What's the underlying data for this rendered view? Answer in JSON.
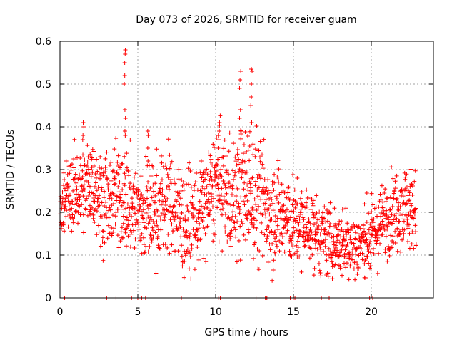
{
  "chart_data": {
    "type": "scatter",
    "title": "Day 073 of 2026, SRMTID for receiver guam",
    "xlabel": "GPS time / hours",
    "ylabel": "SRMTID / TECUs",
    "xlim": [
      0,
      24
    ],
    "ylim": [
      0,
      0.6
    ],
    "xticks": [
      0,
      5,
      10,
      15,
      20
    ],
    "yticks": [
      0,
      0.1,
      0.2,
      0.3,
      0.4,
      0.5,
      0.6
    ],
    "xtick_labels": [
      "0",
      "5",
      "10",
      "15",
      "20"
    ],
    "ytick_labels": [
      "0",
      "0.1",
      "0.2",
      "0.3",
      "0.4",
      "0.5",
      "0.6"
    ],
    "grid": true,
    "marker": "+",
    "marker_color": "#ff0000",
    "series": [
      {
        "name": "SRMTID",
        "x_range": [
          0,
          22.9
        ],
        "baseline": [
          [
            0,
            0.22
          ],
          [
            1,
            0.25
          ],
          [
            2,
            0.27
          ],
          [
            3,
            0.22
          ],
          [
            4,
            0.24
          ],
          [
            5,
            0.2
          ],
          [
            6,
            0.2
          ],
          [
            7,
            0.23
          ],
          [
            8,
            0.17
          ],
          [
            9,
            0.19
          ],
          [
            10,
            0.27
          ],
          [
            11,
            0.23
          ],
          [
            12,
            0.26
          ],
          [
            13,
            0.22
          ],
          [
            14,
            0.2
          ],
          [
            15,
            0.17
          ],
          [
            16,
            0.17
          ],
          [
            17,
            0.13
          ],
          [
            18,
            0.13
          ],
          [
            19,
            0.12
          ],
          [
            20,
            0.14
          ],
          [
            21,
            0.19
          ],
          [
            22,
            0.22
          ],
          [
            22.9,
            0.2
          ]
        ],
        "spread": [
          [
            0,
            0.04
          ],
          [
            4,
            0.06
          ],
          [
            10,
            0.06
          ],
          [
            12.5,
            0.08
          ],
          [
            15,
            0.05
          ],
          [
            17,
            0.04
          ],
          [
            20,
            0.04
          ],
          [
            22.9,
            0.05
          ]
        ],
        "peaks": [
          {
            "x": 4.15,
            "values": [
              0.58,
              0.57,
              0.55,
              0.52,
              0.5,
              0.44,
              0.42,
              0.39,
              0.38
            ]
          },
          {
            "x": 11.6,
            "values": [
              0.53,
              0.51,
              0.49,
              0.44,
              0.42,
              0.39
            ]
          },
          {
            "x": 12.3,
            "values": [
              0.535,
              0.53,
              0.5,
              0.47,
              0.45,
              0.41
            ]
          },
          {
            "x": 10.2,
            "values": [
              0.41,
              0.39,
              0.38,
              0.37,
              0.35
            ]
          },
          {
            "x": 1.5,
            "values": [
              0.41,
              0.4,
              0.38,
              0.37
            ]
          },
          {
            "x": 5.65,
            "values": [
              0.39,
              0.38,
              0.35,
              0.32
            ]
          }
        ],
        "zero_x": [
          0.3,
          3.0,
          3.6,
          4.6,
          5.0,
          5.25,
          5.5,
          7.8,
          10.2,
          10.3,
          12.6,
          13.2,
          13.25,
          13.3,
          14.8,
          15.0,
          15.1,
          16.8,
          17.3,
          19.9,
          20.1
        ]
      }
    ]
  }
}
